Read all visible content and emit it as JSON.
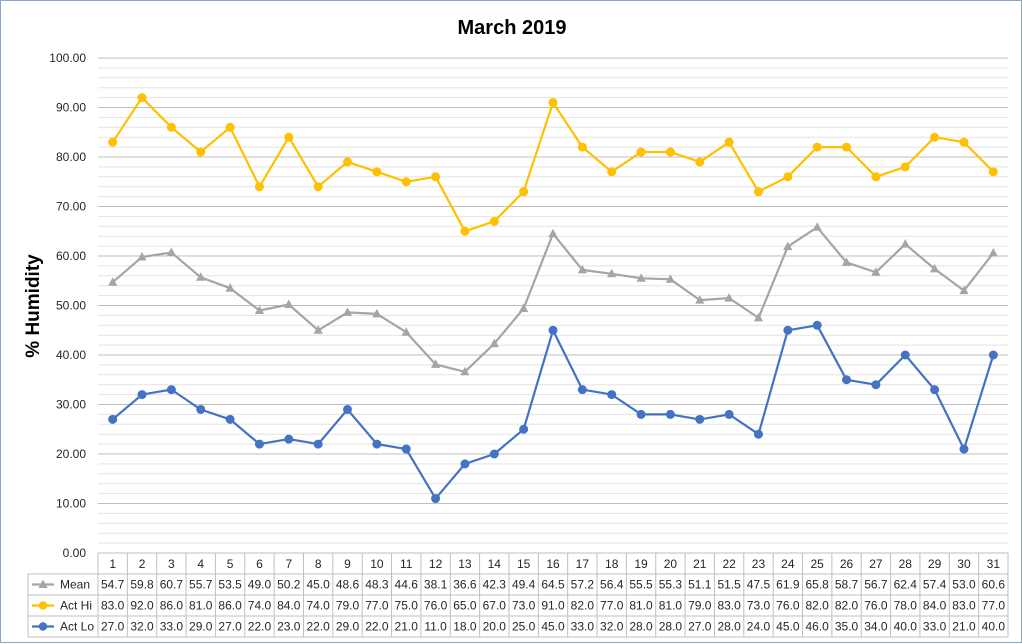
{
  "chart_data": {
    "type": "line",
    "title": "March 2019",
    "ylabel": "% Humidity",
    "xlabel": "",
    "ylim": [
      0,
      100
    ],
    "y_ticks": [
      "0.00",
      "10.00",
      "20.00",
      "30.00",
      "40.00",
      "50.00",
      "60.00",
      "70.00",
      "80.00",
      "90.00",
      "100.00"
    ],
    "grid": true,
    "legend": "data-table",
    "categories": [
      "1",
      "2",
      "3",
      "4",
      "5",
      "6",
      "7",
      "8",
      "9",
      "10",
      "11",
      "12",
      "13",
      "14",
      "15",
      "16",
      "17",
      "18",
      "19",
      "20",
      "21",
      "22",
      "23",
      "24",
      "25",
      "26",
      "27",
      "28",
      "29",
      "30",
      "31"
    ],
    "series": [
      {
        "name": "Mean",
        "color": "#a5a5a5",
        "marker": "triangle",
        "values": [
          54.7,
          59.8,
          60.7,
          55.7,
          53.5,
          49.0,
          50.2,
          45.0,
          48.6,
          48.3,
          44.6,
          38.1,
          36.6,
          42.3,
          49.4,
          64.5,
          57.2,
          56.4,
          55.5,
          55.3,
          51.1,
          51.5,
          47.5,
          61.9,
          65.8,
          58.7,
          56.7,
          62.4,
          57.4,
          53.0,
          60.6
        ],
        "labels": [
          "54.7",
          "59.8",
          "60.7",
          "55.7",
          "53.5",
          "49.0",
          "50.2",
          "45.0",
          "48.6",
          "48.3",
          "44.6",
          "38.1",
          "36.6",
          "42.3",
          "49.4",
          "64.5",
          "57.2",
          "56.4",
          "55.5",
          "55.3",
          "51.1",
          "51.5",
          "47.5",
          "61.9",
          "65.8",
          "58.7",
          "56.7",
          "62.4",
          "57.4",
          "53.0",
          "60.6"
        ]
      },
      {
        "name": "Act Hi",
        "color": "#ffc000",
        "marker": "circle",
        "values": [
          83,
          92,
          86,
          81,
          86,
          74,
          84,
          74,
          79,
          77,
          75,
          76,
          65,
          67,
          73,
          91,
          82,
          77,
          81,
          81,
          79,
          83,
          73,
          76,
          82,
          82,
          76,
          78,
          84,
          83,
          77
        ],
        "labels": [
          "83.0",
          "92.0",
          "86.0",
          "81.0",
          "86.0",
          "74.0",
          "84.0",
          "74.0",
          "79.0",
          "77.0",
          "75.0",
          "76.0",
          "65.0",
          "67.0",
          "73.0",
          "91.0",
          "82.0",
          "77.0",
          "81.0",
          "81.0",
          "79.0",
          "83.0",
          "73.0",
          "76.0",
          "82.0",
          "82.0",
          "76.0",
          "78.0",
          "84.0",
          "83.0",
          "77.0"
        ]
      },
      {
        "name": "Act Lo",
        "color": "#4472c4",
        "marker": "circle",
        "values": [
          27,
          32,
          33,
          29,
          27,
          22,
          23,
          22,
          29,
          22,
          21,
          11,
          18,
          20,
          25,
          45,
          33,
          32,
          28,
          28,
          27,
          28,
          24,
          45,
          46,
          35,
          34,
          40,
          33,
          21,
          40
        ],
        "labels": [
          "27.0",
          "32.0",
          "33.0",
          "29.0",
          "27.0",
          "22.0",
          "23.0",
          "22.0",
          "29.0",
          "22.0",
          "21.0",
          "11.0",
          "18.0",
          "20.0",
          "25.0",
          "45.0",
          "33.0",
          "32.0",
          "28.0",
          "28.0",
          "27.0",
          "28.0",
          "24.0",
          "45.0",
          "46.0",
          "35.0",
          "34.0",
          "40.0",
          "33.0",
          "21.0",
          "40.0"
        ]
      }
    ]
  }
}
